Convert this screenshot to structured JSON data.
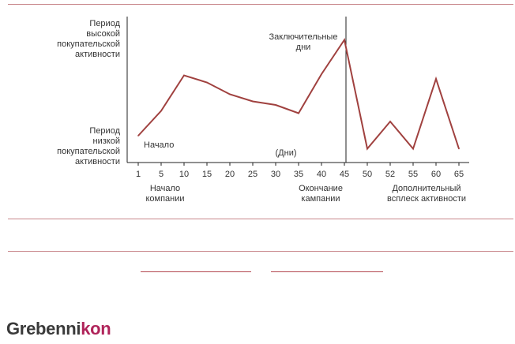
{
  "chart_data": {
    "type": "line",
    "title": "",
    "xlabel": "(Дни)",
    "ylabel": "",
    "x_ticks": [
      "1",
      "5",
      "10",
      "15",
      "20",
      "25",
      "30",
      "35",
      "40",
      "45",
      "50",
      "52",
      "55",
      "60",
      "65"
    ],
    "y_labels": {
      "top": [
        "Период",
        "высокой",
        "покупательской",
        "активности"
      ],
      "bottom": [
        "Период",
        "низкой",
        "покупательской",
        "активности"
      ]
    },
    "ylim": [
      0,
      100
    ],
    "series": [
      {
        "color": "#a0413f",
        "x_index": [
          0,
          1,
          2,
          3,
          4,
          5,
          6,
          7,
          8,
          9,
          10,
          11,
          12,
          13,
          14
        ],
        "values": [
          16,
          37,
          67,
          61,
          51,
          45,
          42,
          35,
          68,
          97,
          5,
          28,
          5,
          64,
          5
        ]
      }
    ],
    "vertical_line_at_index": 9,
    "annotations": {
      "start": "Начало",
      "peak": [
        "Заключительные",
        "дни"
      ],
      "below_axis": [
        {
          "at_index": 1,
          "lines": [
            "Начало",
            "компании"
          ]
        },
        {
          "at_index": 8,
          "lines": [
            "Окончание",
            "кампании"
          ]
        },
        {
          "at_index": 12,
          "lines": [
            "Дополнительный",
            "всплеск активности"
          ]
        }
      ]
    }
  },
  "brand": {
    "part1": "Grebenni",
    "part2": "kon",
    "accent_color": "#b0245a"
  }
}
